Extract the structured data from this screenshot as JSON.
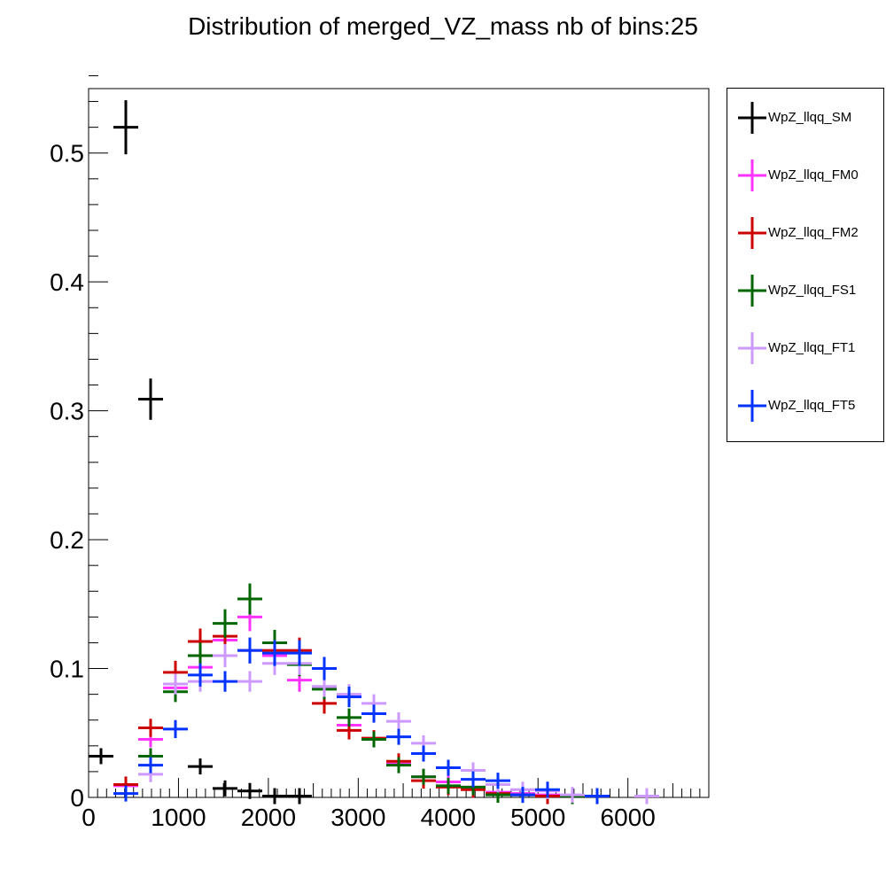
{
  "title": "Distribution of merged_VZ_mass nb of bins:25",
  "chart_data": {
    "type": "scatter",
    "title": "Distribution of merged_VZ_mass nb of bins:25",
    "xlabel": "",
    "ylabel": "",
    "xlim": [
      0,
      6900
    ],
    "ylim": [
      0,
      0.55
    ],
    "bin_width": 276,
    "x_ticks": [
      0,
      1000,
      2000,
      3000,
      4000,
      5000,
      6000
    ],
    "x_tick_labels": [
      "0",
      "1000",
      "2000",
      "3000",
      "4000",
      "5000",
      "6000"
    ],
    "y_ticks": [
      0,
      0.1,
      0.2,
      0.3,
      0.4,
      0.5
    ],
    "y_tick_labels": [
      "0",
      "0.1",
      "0.2",
      "0.3",
      "0.4",
      "0.5"
    ],
    "legend_position": "right, outside plot",
    "series": [
      {
        "name": "WpZ_llqq_SM",
        "color": "#000000",
        "points": [
          {
            "x": 138,
            "y": 0.032,
            "err": 0.004
          },
          {
            "x": 414,
            "y": 0.52,
            "err": 0.021
          },
          {
            "x": 690,
            "y": 0.309,
            "err": 0.016
          },
          {
            "x": 1242,
            "y": 0.024,
            "err": 0.003
          },
          {
            "x": 1518,
            "y": 0.007,
            "err": 0.002
          },
          {
            "x": 1794,
            "y": 0.005,
            "err": 0.002
          },
          {
            "x": 2070,
            "y": 0.001,
            "err": 0.001
          },
          {
            "x": 2346,
            "y": 0.001,
            "err": 0.001
          }
        ]
      },
      {
        "name": "WpZ_llqq_FM0",
        "color": "#ff33ff",
        "points": [
          {
            "x": 414,
            "y": 0.009,
            "err": 0.002
          },
          {
            "x": 690,
            "y": 0.045,
            "err": 0.006
          },
          {
            "x": 966,
            "y": 0.085,
            "err": 0.008
          },
          {
            "x": 1242,
            "y": 0.101,
            "err": 0.009
          },
          {
            "x": 1518,
            "y": 0.122,
            "err": 0.01
          },
          {
            "x": 1794,
            "y": 0.14,
            "err": 0.011
          },
          {
            "x": 2070,
            "y": 0.11,
            "err": 0.01
          },
          {
            "x": 2346,
            "y": 0.091,
            "err": 0.009
          },
          {
            "x": 2622,
            "y": 0.086,
            "err": 0.008
          },
          {
            "x": 2898,
            "y": 0.056,
            "err": 0.007
          },
          {
            "x": 3174,
            "y": 0.045,
            "err": 0.006
          },
          {
            "x": 3450,
            "y": 0.026,
            "err": 0.005
          },
          {
            "x": 3726,
            "y": 0.016,
            "err": 0.004
          },
          {
            "x": 4002,
            "y": 0.012,
            "err": 0.003
          },
          {
            "x": 4278,
            "y": 0.008,
            "err": 0.003
          },
          {
            "x": 4554,
            "y": 0.004,
            "err": 0.002
          },
          {
            "x": 4830,
            "y": 0.003,
            "err": 0.002
          },
          {
            "x": 5106,
            "y": 0.002,
            "err": 0.001
          }
        ]
      },
      {
        "name": "WpZ_llqq_FM2",
        "color": "#cc0000",
        "points": [
          {
            "x": 414,
            "y": 0.01,
            "err": 0.002
          },
          {
            "x": 690,
            "y": 0.054,
            "err": 0.007
          },
          {
            "x": 966,
            "y": 0.097,
            "err": 0.009
          },
          {
            "x": 1242,
            "y": 0.121,
            "err": 0.01
          },
          {
            "x": 1518,
            "y": 0.125,
            "err": 0.01
          },
          {
            "x": 1794,
            "y": 0.114,
            "err": 0.01
          },
          {
            "x": 2070,
            "y": 0.114,
            "err": 0.01
          },
          {
            "x": 2346,
            "y": 0.114,
            "err": 0.01
          },
          {
            "x": 2622,
            "y": 0.073,
            "err": 0.008
          },
          {
            "x": 2898,
            "y": 0.052,
            "err": 0.007
          },
          {
            "x": 3174,
            "y": 0.046,
            "err": 0.006
          },
          {
            "x": 3450,
            "y": 0.028,
            "err": 0.005
          },
          {
            "x": 3726,
            "y": 0.013,
            "err": 0.003
          },
          {
            "x": 4002,
            "y": 0.008,
            "err": 0.003
          },
          {
            "x": 4278,
            "y": 0.006,
            "err": 0.002
          },
          {
            "x": 4554,
            "y": 0.003,
            "err": 0.002
          },
          {
            "x": 4830,
            "y": 0.002,
            "err": 0.001
          },
          {
            "x": 5106,
            "y": 0.001,
            "err": 0.001
          }
        ]
      },
      {
        "name": "WpZ_llqq_FS1",
        "color": "#006600",
        "points": [
          {
            "x": 690,
            "y": 0.032,
            "err": 0.005
          },
          {
            "x": 966,
            "y": 0.082,
            "err": 0.008
          },
          {
            "x": 1242,
            "y": 0.11,
            "err": 0.01
          },
          {
            "x": 1518,
            "y": 0.135,
            "err": 0.011
          },
          {
            "x": 1794,
            "y": 0.154,
            "err": 0.012
          },
          {
            "x": 2070,
            "y": 0.12,
            "err": 0.01
          },
          {
            "x": 2346,
            "y": 0.103,
            "err": 0.009
          },
          {
            "x": 2622,
            "y": 0.084,
            "err": 0.008
          },
          {
            "x": 2898,
            "y": 0.062,
            "err": 0.007
          },
          {
            "x": 3174,
            "y": 0.045,
            "err": 0.006
          },
          {
            "x": 3450,
            "y": 0.025,
            "err": 0.004
          },
          {
            "x": 3726,
            "y": 0.016,
            "err": 0.004
          },
          {
            "x": 4002,
            "y": 0.009,
            "err": 0.003
          },
          {
            "x": 4278,
            "y": 0.008,
            "err": 0.003
          },
          {
            "x": 4554,
            "y": 0.002,
            "err": 0.001
          },
          {
            "x": 4830,
            "y": 0.002,
            "err": 0.001
          },
          {
            "x": 5382,
            "y": 0.001,
            "err": 0.001
          }
        ]
      },
      {
        "name": "WpZ_llqq_FT1",
        "color": "#cc99ff",
        "points": [
          {
            "x": 690,
            "y": 0.018,
            "err": 0.003
          },
          {
            "x": 966,
            "y": 0.088,
            "err": 0.008
          },
          {
            "x": 1242,
            "y": 0.09,
            "err": 0.008
          },
          {
            "x": 1518,
            "y": 0.11,
            "err": 0.009
          },
          {
            "x": 1794,
            "y": 0.09,
            "err": 0.008
          },
          {
            "x": 2070,
            "y": 0.104,
            "err": 0.009
          },
          {
            "x": 2346,
            "y": 0.104,
            "err": 0.009
          },
          {
            "x": 2622,
            "y": 0.086,
            "err": 0.008
          },
          {
            "x": 2898,
            "y": 0.08,
            "err": 0.008
          },
          {
            "x": 3174,
            "y": 0.073,
            "err": 0.007
          },
          {
            "x": 3450,
            "y": 0.059,
            "err": 0.007
          },
          {
            "x": 3726,
            "y": 0.042,
            "err": 0.006
          },
          {
            "x": 4002,
            "y": 0.023,
            "err": 0.004
          },
          {
            "x": 4278,
            "y": 0.021,
            "err": 0.004
          },
          {
            "x": 4554,
            "y": 0.01,
            "err": 0.003
          },
          {
            "x": 4830,
            "y": 0.006,
            "err": 0.002
          },
          {
            "x": 5106,
            "y": 0.005,
            "err": 0.002
          },
          {
            "x": 5382,
            "y": 0.002,
            "err": 0.001
          },
          {
            "x": 5658,
            "y": 0.001,
            "err": 0.001
          },
          {
            "x": 6210,
            "y": 0.001,
            "err": 0.001
          }
        ]
      },
      {
        "name": "WpZ_llqq_FT5",
        "color": "#0033ff",
        "points": [
          {
            "x": 414,
            "y": 0.003,
            "err": 0.001
          },
          {
            "x": 690,
            "y": 0.025,
            "err": 0.005
          },
          {
            "x": 966,
            "y": 0.053,
            "err": 0.007
          },
          {
            "x": 1242,
            "y": 0.095,
            "err": 0.009
          },
          {
            "x": 1518,
            "y": 0.09,
            "err": 0.008
          },
          {
            "x": 1794,
            "y": 0.114,
            "err": 0.01
          },
          {
            "x": 2070,
            "y": 0.112,
            "err": 0.01
          },
          {
            "x": 2346,
            "y": 0.112,
            "err": 0.01
          },
          {
            "x": 2622,
            "y": 0.1,
            "err": 0.009
          },
          {
            "x": 2898,
            "y": 0.078,
            "err": 0.008
          },
          {
            "x": 3174,
            "y": 0.065,
            "err": 0.007
          },
          {
            "x": 3450,
            "y": 0.047,
            "err": 0.006
          },
          {
            "x": 3726,
            "y": 0.034,
            "err": 0.005
          },
          {
            "x": 4002,
            "y": 0.023,
            "err": 0.004
          },
          {
            "x": 4278,
            "y": 0.014,
            "err": 0.003
          },
          {
            "x": 4554,
            "y": 0.013,
            "err": 0.003
          },
          {
            "x": 4830,
            "y": 0.002,
            "err": 0.001
          },
          {
            "x": 5106,
            "y": 0.006,
            "err": 0.002
          },
          {
            "x": 5658,
            "y": 0.001,
            "err": 0.001
          }
        ]
      }
    ]
  }
}
